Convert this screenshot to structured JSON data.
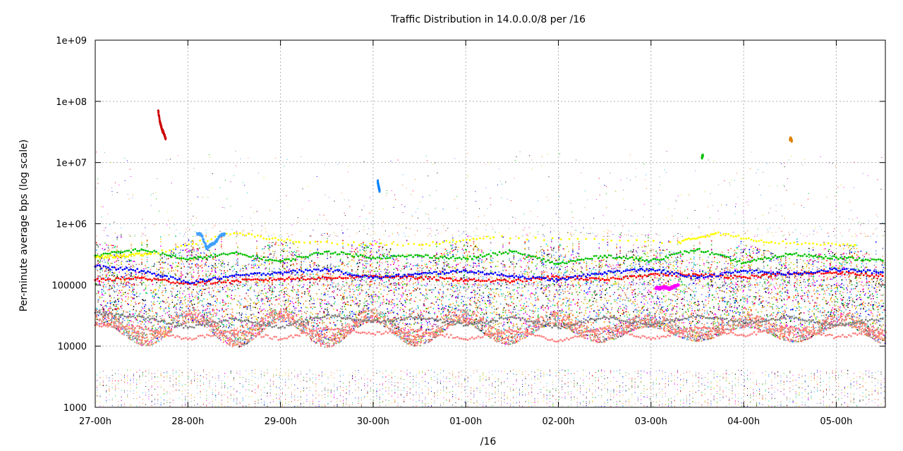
{
  "chart_data": {
    "type": "scatter",
    "title": "Traffic Distribution in 14.0.0.0/8 per /16",
    "xlabel": "/16",
    "ylabel": "Per-minute average bps (log scale)",
    "y_scale": "log",
    "ylim": [
      1000,
      1000000000
    ],
    "y_ticks": [
      {
        "value": 1000,
        "label": "1000"
      },
      {
        "value": 10000,
        "label": "10000"
      },
      {
        "value": 100000,
        "label": "100000"
      },
      {
        "value": 1000000,
        "label": "1e+06"
      },
      {
        "value": 10000000,
        "label": "1e+07"
      },
      {
        "value": 100000000,
        "label": "1e+08"
      },
      {
        "value": 1000000000,
        "label": "1e+09"
      }
    ],
    "x_ticks": [
      {
        "value": 0,
        "label": "27-00h"
      },
      {
        "value": 1,
        "label": "28-00h"
      },
      {
        "value": 2,
        "label": "29-00h"
      },
      {
        "value": 3,
        "label": "30-00h"
      },
      {
        "value": 4,
        "label": "01-00h"
      },
      {
        "value": 5,
        "label": "02-00h"
      },
      {
        "value": 6,
        "label": "03-00h"
      },
      {
        "value": 7,
        "label": "04-00h"
      },
      {
        "value": 8,
        "label": "05-00h"
      }
    ],
    "xlim": [
      0,
      8.53
    ],
    "grid": true,
    "legend": "none",
    "series_colors": [
      "#ff0000",
      "#00c000",
      "#0000ff",
      "#ff00ff",
      "#00cccc",
      "#cccc00",
      "#000000",
      "#ff8040",
      "#808080",
      "#ff8080",
      "#40a0ff",
      "#a000a0",
      "#ffd000",
      "#60c060",
      "#8080ff",
      "#e08000"
    ],
    "series": [
      {
        "color": "#ff0000",
        "x": [
          0.0,
          0.5,
          1.0,
          1.5,
          2.0,
          2.5,
          3.0,
          3.5,
          4.0,
          4.5,
          5.0,
          5.5,
          6.0,
          6.5,
          7.0,
          7.5,
          8.0,
          8.5
        ],
        "y": [
          120000,
          130000,
          105000,
          115000,
          125000,
          130000,
          140000,
          130000,
          120000,
          115000,
          135000,
          120000,
          150000,
          145000,
          135000,
          150000,
          160000,
          140000
        ]
      },
      {
        "color": "#00c000",
        "x": [
          0.0,
          0.5,
          1.0,
          1.5,
          2.0,
          2.5,
          3.0,
          3.5,
          4.0,
          4.5,
          5.0,
          5.5,
          6.0,
          6.5,
          7.0,
          7.5,
          8.0,
          8.5
        ],
        "y": [
          300000,
          380000,
          260000,
          330000,
          240000,
          350000,
          280000,
          300000,
          270000,
          350000,
          220000,
          300000,
          250000,
          380000,
          230000,
          320000,
          280000,
          250000
        ]
      },
      {
        "color": "#ffff00",
        "x": [
          0.0,
          0.3,
          0.6,
          1.5,
          2.2,
          3.5,
          4.3,
          6.3,
          6.7,
          7.3,
          8.2
        ],
        "y": [
          280000,
          300000,
          320000,
          700000,
          500000,
          450000,
          600000,
          500000,
          700000,
          500000,
          450000
        ]
      },
      {
        "color": "#0000ff",
        "x": [
          0.0,
          0.5,
          1.0,
          1.5,
          2.0,
          2.5,
          3.0,
          3.5,
          4.0,
          4.5,
          5.0,
          5.5,
          6.0,
          6.5,
          7.0,
          7.5,
          8.0,
          8.5
        ],
        "y": [
          200000,
          170000,
          110000,
          140000,
          160000,
          180000,
          130000,
          150000,
          170000,
          140000,
          120000,
          160000,
          180000,
          130000,
          170000,
          150000,
          180000,
          160000
        ]
      },
      {
        "color": "#ff8080",
        "x": [
          0.0,
          0.5,
          1.0,
          1.5,
          2.0,
          2.5,
          3.0,
          3.5,
          4.0,
          4.5,
          5.0,
          5.5,
          6.0,
          6.5,
          7.0,
          7.5,
          8.0,
          8.5
        ],
        "y": [
          22000,
          20000,
          13000,
          18000,
          13000,
          20000,
          16000,
          18000,
          13000,
          18000,
          12000,
          20000,
          13000,
          20000,
          15000,
          20000,
          14000,
          18000
        ]
      },
      {
        "color": "#808080",
        "x": [
          0.0,
          0.5,
          1.0,
          1.5,
          2.0,
          2.5,
          3.0,
          3.5,
          4.0,
          4.5,
          5.0,
          5.5,
          6.0,
          6.5,
          7.0,
          7.5,
          8.0,
          8.5
        ],
        "y": [
          35000,
          30000,
          20000,
          28000,
          20000,
          32000,
          25000,
          30000,
          22000,
          30000,
          20000,
          30000,
          22000,
          32000,
          24000,
          30000,
          22000,
          28000
        ]
      },
      {
        "color": "#ff00ff",
        "x": [
          6.05,
          6.1,
          6.15,
          6.2,
          6.25,
          6.3
        ],
        "y": [
          90000,
          88000,
          92000,
          86000,
          95000,
          100000
        ]
      },
      {
        "color": "#40a0ff",
        "x": [
          1.1,
          1.15,
          1.2,
          1.25,
          1.3,
          1.35,
          1.4
        ],
        "y": [
          700000,
          650000,
          400000,
          450000,
          500000,
          650000,
          680000
        ]
      },
      {
        "color": "#cc0000",
        "x": [
          0.68,
          0.7,
          0.72,
          0.74,
          0.76
        ],
        "y": [
          70000000,
          45000000,
          35000000,
          30000000,
          25000000
        ]
      },
      {
        "color": "#e08000",
        "x": [
          7.5,
          7.51,
          7.52
        ],
        "y": [
          24000000,
          25000000,
          23000000
        ]
      },
      {
        "color": "#00c000",
        "x": [
          6.55,
          6.56
        ],
        "y": [
          12000000,
          13000000
        ]
      },
      {
        "color": "#0080ff",
        "x": [
          3.05,
          3.06,
          3.07
        ],
        "y": [
          5000000,
          4000000,
          3500000
        ]
      }
    ]
  }
}
